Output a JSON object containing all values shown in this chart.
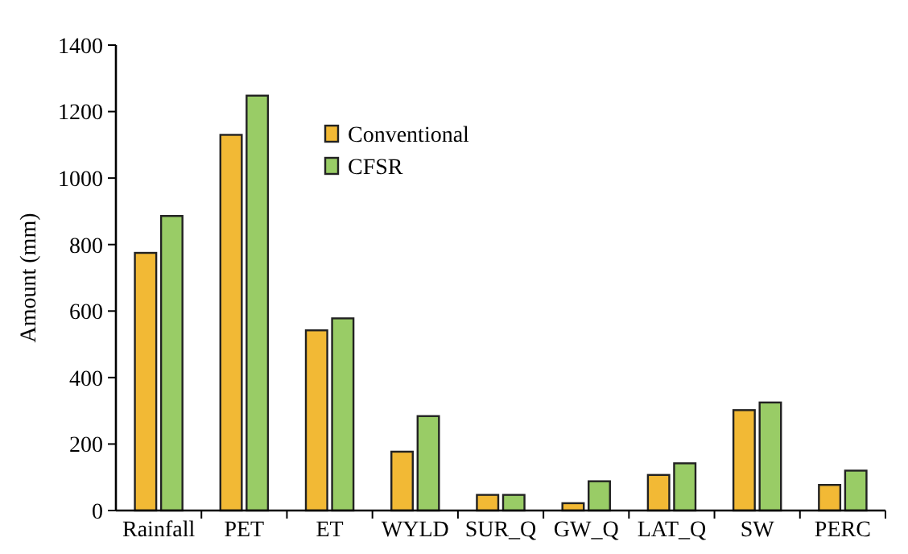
{
  "chart_data": {
    "type": "bar",
    "ylabel": "Amount (mm)",
    "categories": [
      "Rainfall",
      "PET",
      "ET",
      "WYLD",
      "SUR_Q",
      "GW_Q",
      "LAT_Q",
      "SW",
      "PERC"
    ],
    "series": [
      {
        "name": "Conventional",
        "color": "#f2b935",
        "values": [
          775,
          1130,
          542,
          177,
          47,
          22,
          107,
          302,
          77
        ]
      },
      {
        "name": "CFSR",
        "color": "#99cc66",
        "values": [
          886,
          1248,
          578,
          284,
          47,
          88,
          142,
          325,
          120
        ]
      }
    ],
    "ylim": [
      0,
      1400
    ],
    "yticks": [
      0,
      200,
      400,
      600,
      800,
      1000,
      1200,
      1400
    ],
    "legend": "top",
    "grid": false
  }
}
